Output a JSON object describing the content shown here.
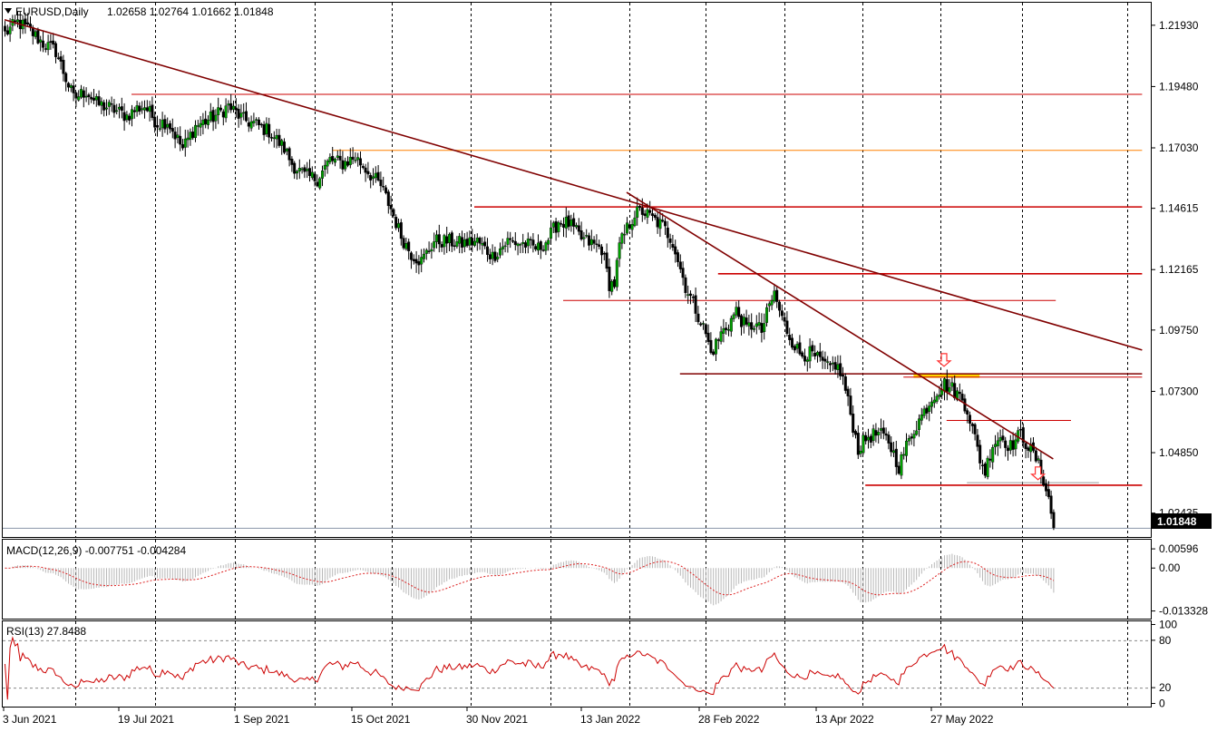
{
  "main_panel": {
    "symbol": "EURUSD,Daily",
    "ohlc": "1.02658 1.02764 1.01662 1.01848",
    "current_price_label": "1.01848",
    "current_price": 1.01848,
    "y_labels": [
      {
        "value": 1.2193,
        "text": "1.21930"
      },
      {
        "value": 1.1948,
        "text": "1.19480"
      },
      {
        "value": 1.1703,
        "text": "1.17030"
      },
      {
        "value": 1.14615,
        "text": "1.14615"
      },
      {
        "value": 1.12165,
        "text": "1.12165"
      },
      {
        "value": 1.0975,
        "text": "1.09750"
      },
      {
        "value": 1.073,
        "text": "1.07300"
      },
      {
        "value": 1.0485,
        "text": "1.04850"
      },
      {
        "value": 1.02435,
        "text": "1.02435"
      }
    ],
    "ylim": [
      1.0148,
      1.2283
    ]
  },
  "x_labels": [
    "3 Jun 2021",
    "19 Jul 2021",
    "1 Sep 2021",
    "15 Oct 2021",
    "30 Nov 2021",
    "13 Jan 2022",
    "28 Feb 2022",
    "13 Apr 2022",
    "27 May 2022"
  ],
  "macd_panel": {
    "title": "MACD(12,26,9) -0.007751 -0.004284",
    "y_labels": [
      {
        "value": 0.00596,
        "text": "0.00596"
      },
      {
        "value": 0.0,
        "text": "0.00"
      },
      {
        "value": -0.013328,
        "text": "-0.013328"
      }
    ],
    "ylim": [
      -0.0157,
      0.0088
    ]
  },
  "rsi_panel": {
    "title": "RSI(13) 27.8488",
    "y_labels": [
      {
        "value": 100,
        "text": "100"
      },
      {
        "value": 80,
        "text": "80"
      },
      {
        "value": 20,
        "text": "20"
      },
      {
        "value": 0,
        "text": "0"
      }
    ],
    "levels": [
      80,
      20
    ],
    "ylim": [
      -4,
      104
    ]
  },
  "colors": {
    "bull": "#00a000",
    "bear": "#000000",
    "trendline": "#800000",
    "hline": "#cc0000",
    "orange_line": "#ff8000",
    "highlight": "#ffd700",
    "arrow": "#ff3030",
    "macd_hist": "#b8b8b8",
    "macd_signal": "#dd2222",
    "rsi_line": "#cc0000"
  },
  "chart_data": {
    "type": "candlestick",
    "title": "EURUSD,Daily",
    "anchors": [
      [
        0,
        1.216
      ],
      [
        5,
        1.2205
      ],
      [
        10,
        1.217
      ],
      [
        15,
        1.212
      ],
      [
        20,
        1.209
      ],
      [
        24,
        1.198
      ],
      [
        27,
        1.19
      ],
      [
        32,
        1.193
      ],
      [
        36,
        1.188
      ],
      [
        42,
        1.186
      ],
      [
        48,
        1.183
      ],
      [
        52,
        1.186
      ],
      [
        55,
        1.187
      ],
      [
        60,
        1.18
      ],
      [
        64,
        1.181
      ],
      [
        70,
        1.17
      ],
      [
        75,
        1.179
      ],
      [
        82,
        1.1825
      ],
      [
        88,
        1.187
      ],
      [
        94,
        1.1815
      ],
      [
        98,
        1.18
      ],
      [
        104,
        1.177
      ],
      [
        110,
        1.17
      ],
      [
        113,
        1.164
      ],
      [
        118,
        1.159
      ],
      [
        123,
        1.158
      ],
      [
        128,
        1.1655
      ],
      [
        133,
        1.164
      ],
      [
        138,
        1.1665
      ],
      [
        142,
        1.162
      ],
      [
        148,
        1.155
      ],
      [
        152,
        1.146
      ],
      [
        156,
        1.135
      ],
      [
        160,
        1.128
      ],
      [
        164,
        1.125
      ],
      [
        169,
        1.133
      ],
      [
        174,
        1.133
      ],
      [
        180,
        1.132
      ],
      [
        186,
        1.133
      ],
      [
        192,
        1.127
      ],
      [
        198,
        1.133
      ],
      [
        204,
        1.132
      ],
      [
        210,
        1.13
      ],
      [
        214,
        1.134
      ],
      [
        218,
        1.141
      ],
      [
        222,
        1.14
      ],
      [
        227,
        1.134
      ],
      [
        231,
        1.132
      ],
      [
        235,
        1.13
      ],
      [
        238,
        1.116
      ],
      [
        240,
        1.116
      ],
      [
        242,
        1.131
      ],
      [
        245,
        1.138
      ],
      [
        248,
        1.144
      ],
      [
        251,
        1.145
      ],
      [
        255,
        1.142
      ],
      [
        259,
        1.139
      ],
      [
        263,
        1.133
      ],
      [
        266,
        1.122
      ],
      [
        268,
        1.115
      ],
      [
        272,
        1.106
      ],
      [
        276,
        1.096
      ],
      [
        278,
        1.088
      ],
      [
        282,
        1.096
      ],
      [
        285,
        1.1
      ],
      [
        288,
        1.105
      ],
      [
        292,
        1.098
      ],
      [
        295,
        1.1
      ],
      [
        298,
        1.097
      ],
      [
        301,
        1.107
      ],
      [
        303,
        1.112
      ],
      [
        306,
        1.102
      ],
      [
        309,
        1.095
      ],
      [
        313,
        1.088
      ],
      [
        317,
        1.088
      ],
      [
        321,
        1.085
      ],
      [
        324,
        1.082
      ],
      [
        327,
        1.084
      ],
      [
        330,
        1.078
      ],
      [
        333,
        1.064
      ],
      [
        336,
        1.05
      ],
      [
        340,
        1.055
      ],
      [
        344,
        1.056
      ],
      [
        348,
        1.053
      ],
      [
        350,
        1.048
      ],
      [
        352,
        1.043
      ],
      [
        355,
        1.051
      ],
      [
        358,
        1.058
      ],
      [
        362,
        1.065
      ],
      [
        366,
        1.072
      ],
      [
        370,
        1.076
      ],
      [
        373,
        1.074
      ],
      [
        377,
        1.07
      ],
      [
        379,
        1.066
      ],
      [
        381,
        1.058
      ],
      [
        384,
        1.046
      ],
      [
        386,
        1.041
      ],
      [
        389,
        1.052
      ],
      [
        392,
        1.055
      ],
      [
        396,
        1.051
      ],
      [
        400,
        1.056
      ],
      [
        403,
        1.051
      ],
      [
        406,
        1.046
      ],
      [
        409,
        1.038
      ],
      [
        411,
        1.03
      ],
      [
        413,
        1.0185
      ]
    ],
    "n_bars": 414,
    "annotations": {
      "trendlines": [
        {
          "from": [
            0,
            1.2215
          ],
          "to": [
            448,
            1.0895
          ]
        },
        {
          "from": [
            245,
            1.1525
          ],
          "to": [
            413,
            1.046
          ]
        }
      ],
      "horizontal_levels": [
        {
          "from": 50,
          "to": 448,
          "y": 1.1917,
          "kind": "thin-red"
        },
        {
          "from": 129,
          "to": 448,
          "y": 1.1693,
          "kind": "orange"
        },
        {
          "from": 185,
          "to": 448,
          "y": 1.1467,
          "kind": "red"
        },
        {
          "from": 281,
          "to": 448,
          "y": 1.12,
          "kind": "red"
        },
        {
          "from": 220,
          "to": 414,
          "y": 1.1093,
          "kind": "thin-red"
        },
        {
          "from": 266,
          "to": 448,
          "y": 1.08,
          "kind": "dark"
        },
        {
          "from": 354,
          "to": 448,
          "y": 1.0787,
          "kind": "thin-red"
        },
        {
          "from": 371,
          "to": 420,
          "y": 1.0614,
          "kind": "thin-red"
        },
        {
          "from": 339,
          "to": 448,
          "y": 1.0355,
          "kind": "red"
        },
        {
          "from": 379,
          "to": 431,
          "y": 1.0365,
          "kind": "gray"
        }
      ],
      "highlight": {
        "from": 358,
        "to": 384,
        "y": 1.0793
      },
      "arrows": [
        {
          "x": 370,
          "y": 1.083
        },
        {
          "x": 407,
          "y": 1.0377
        }
      ]
    }
  }
}
